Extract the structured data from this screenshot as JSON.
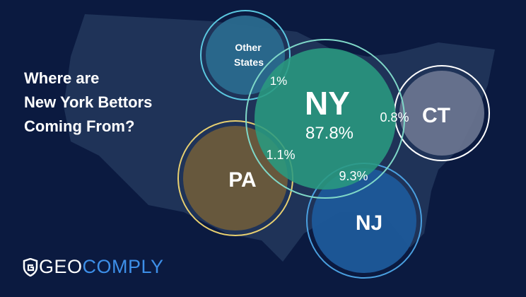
{
  "title": {
    "line1": "Where are",
    "line2": "New York Bettors",
    "line3": "Coming From?"
  },
  "bubbles": {
    "other": {
      "label_line1": "Other",
      "label_line2": "States",
      "value": "1%",
      "color": "#2a6a8e"
    },
    "ny": {
      "label": "NY",
      "value": "87.8%",
      "color": "#2a9a80"
    },
    "ct": {
      "label": "CT",
      "value": "0.8%",
      "color": "#6b7590"
    },
    "pa": {
      "label": "PA",
      "value": "1.1%",
      "color": "#6b5b3c"
    },
    "nj": {
      "label": "NJ",
      "value": "9.3%",
      "color": "#1d5a9a"
    }
  },
  "logo": {
    "part1": "GEO",
    "part2": "COMPLY",
    "icon": "shield-icon"
  },
  "colors": {
    "background": "#0b1a40",
    "map": "#1f3358",
    "brand": "#3d8fe8"
  }
}
